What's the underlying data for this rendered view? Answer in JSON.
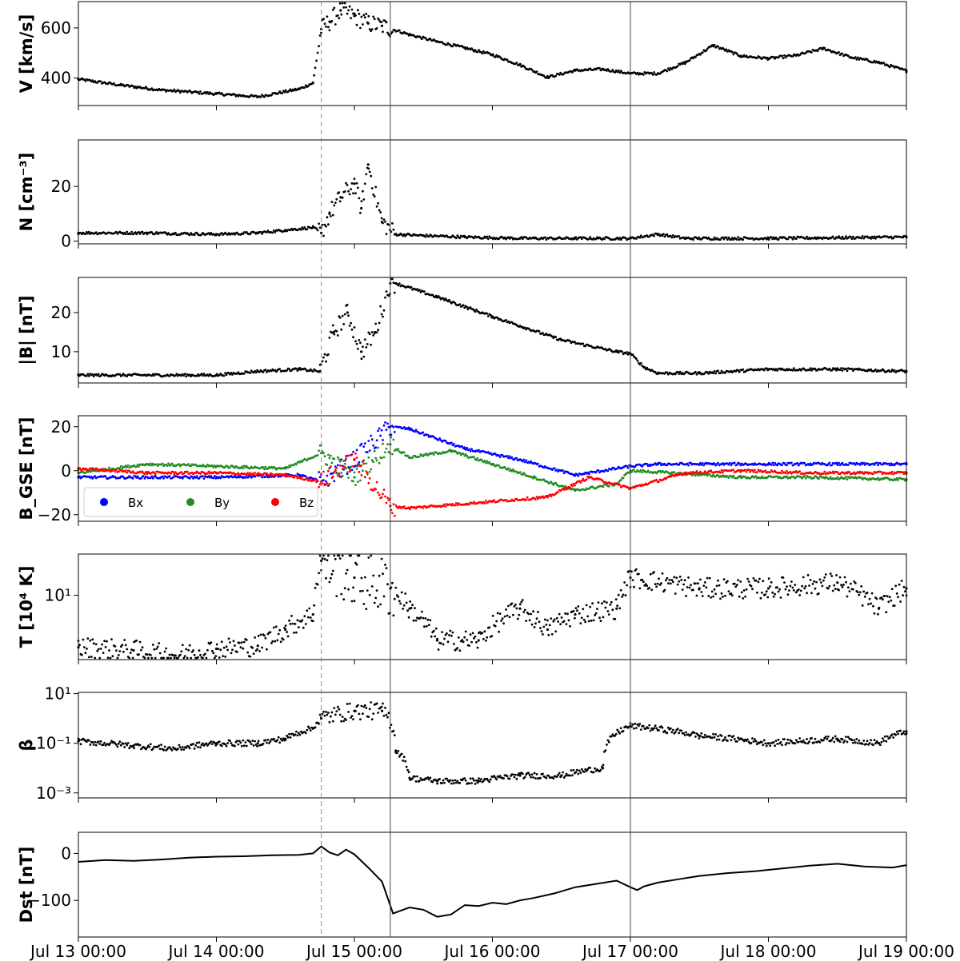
{
  "chart_data": [
    {
      "type": "scatter",
      "panel": "speed",
      "ylabel": "V [km/s]",
      "ylim": [
        290,
        705
      ],
      "yticks": [
        400,
        600
      ],
      "ytick_labels": [
        "400",
        "600"
      ],
      "series": [
        {
          "color": "#000000",
          "x": [
            0,
            0.3,
            0.6,
            1.0,
            1.3,
            1.6,
            1.7,
            1.76,
            1.82,
            1.9,
            2.0,
            2.1,
            2.2,
            2.4,
            2.6,
            2.8,
            3.0,
            3.2,
            3.4,
            3.6,
            3.8,
            4.0,
            4.2,
            4.4,
            4.6,
            4.8,
            5.0,
            5.2,
            5.4,
            5.6,
            5.8,
            6.0
          ],
          "y": [
            395,
            372,
            352,
            337,
            325,
            356,
            380,
            595,
            625,
            670,
            648,
            618,
            608,
            573,
            545,
            520,
            493,
            452,
            403,
            430,
            435,
            418,
            418,
            462,
            530,
            488,
            478,
            490,
            518,
            482,
            462,
            428
          ]
        }
      ]
    },
    {
      "type": "scatter",
      "panel": "density",
      "ylabel": "N [cm⁻³]",
      "ylim": [
        -1,
        37
      ],
      "yticks": [
        0,
        20
      ],
      "ytick_labels": [
        "0",
        "20"
      ],
      "series": [
        {
          "color": "#000000",
          "x": [
            0,
            0.5,
            1.0,
            1.3,
            1.5,
            1.7,
            1.76,
            1.82,
            1.9,
            2.0,
            2.05,
            2.1,
            2.2,
            2.3,
            2.5,
            2.8,
            3.2,
            3.6,
            4.0,
            4.2,
            4.4,
            5.0,
            6.0
          ],
          "y": [
            3,
            3,
            2.5,
            3,
            4,
            5,
            3,
            10,
            16,
            21,
            12,
            28,
            7,
            2.5,
            2,
            1.5,
            1,
            1,
            1,
            2.5,
            1,
            1,
            1.5
          ]
        }
      ]
    },
    {
      "type": "scatter",
      "panel": "field-magnitude",
      "ylabel": "|B| [nT]",
      "ylim": [
        2,
        29
      ],
      "yticks": [
        10,
        20
      ],
      "ytick_labels": [
        "10",
        "20"
      ],
      "series": [
        {
          "color": "#000000",
          "x": [
            0,
            0.5,
            1.0,
            1.3,
            1.6,
            1.75,
            1.85,
            1.95,
            2.05,
            2.15,
            2.26,
            2.3,
            2.6,
            3.0,
            3.5,
            3.9,
            4.0,
            4.1,
            4.2,
            4.5,
            5.0,
            5.5,
            6.0
          ],
          "y": [
            4,
            4,
            4,
            5,
            5.5,
            5,
            15,
            20,
            10,
            15,
            27.5,
            27.5,
            24,
            19,
            13,
            10,
            9.5,
            6,
            4.5,
            4.5,
            5.5,
            5.5,
            5
          ]
        }
      ]
    },
    {
      "type": "scatter",
      "panel": "field-components",
      "ylabel": "B_GSE [nT]",
      "ylim": [
        -23,
        25
      ],
      "yticks": [
        -20,
        0,
        20
      ],
      "ytick_labels": [
        "−20",
        "0",
        "20"
      ],
      "legend": {
        "position": "lower-left",
        "entries": [
          "Bx",
          "By",
          "Bz"
        ]
      },
      "series": [
        {
          "name": "Bx",
          "color": "#0000ff",
          "x": [
            0,
            1.0,
            1.6,
            1.76,
            2.0,
            2.26,
            2.4,
            2.8,
            3.2,
            3.6,
            4.0,
            4.2,
            4.6,
            5.0,
            5.5,
            6.0
          ],
          "y": [
            -3,
            -3,
            -2,
            -5,
            5,
            20,
            19,
            10,
            5,
            -2,
            2,
            3,
            3,
            3,
            3,
            3
          ]
        },
        {
          "name": "By",
          "color": "#228b22",
          "x": [
            0,
            0.5,
            1.0,
            1.5,
            1.76,
            2.0,
            2.26,
            2.4,
            2.7,
            3.0,
            3.3,
            3.6,
            3.9,
            4.0,
            4.3,
            4.8,
            5.3,
            6.0
          ],
          "y": [
            -1,
            3,
            2,
            1,
            8,
            -3,
            12,
            6,
            9,
            3,
            -3,
            -9,
            -6,
            0,
            -1,
            -3,
            -3,
            -4
          ]
        },
        {
          "name": "Bz",
          "color": "#ff0000",
          "x": [
            0,
            0.5,
            1.0,
            1.5,
            1.76,
            2.0,
            2.26,
            2.4,
            3.0,
            3.4,
            3.7,
            4.0,
            4.4,
            4.8,
            5.3,
            6.0
          ],
          "y": [
            1,
            -1,
            -1,
            -2,
            -5,
            5,
            -16,
            -17,
            -14,
            -12,
            -3,
            -8,
            -1,
            0,
            -1,
            -1
          ]
        }
      ]
    },
    {
      "type": "scatter",
      "panel": "temperature",
      "ylabel": "T [10⁴ K]",
      "yscale": "log",
      "yticks": [
        10
      ],
      "ytick_labels": [
        "10¹"
      ],
      "series": [
        {
          "color": "#000000",
          "x": [
            0,
            0.4,
            0.7,
            1.0,
            1.3,
            1.5,
            1.7,
            1.76,
            2.0,
            2.26,
            2.4,
            2.6,
            2.9,
            3.2,
            3.4,
            3.6,
            3.9,
            4.0,
            4.5,
            5.0,
            5.5,
            5.8,
            6.0
          ],
          "y": [
            2.5,
            2.3,
            2.0,
            2.4,
            2.6,
            4.0,
            6.0,
            25,
            16,
            12,
            7,
            3,
            3,
            7,
            4,
            6,
            7,
            16,
            12,
            12,
            14,
            7,
            12
          ]
        }
      ]
    },
    {
      "type": "scatter",
      "panel": "plasma-beta",
      "ylabel": "β",
      "yscale": "log",
      "yticks": [
        10,
        0.1,
        0.001
      ],
      "ytick_labels": [
        "10¹",
        "10⁻¹",
        "10⁻³"
      ],
      "series": [
        {
          "color": "#000000",
          "x": [
            0,
            0.4,
            0.7,
            1.0,
            1.3,
            1.5,
            1.7,
            1.76,
            2.0,
            2.2,
            2.3,
            2.4,
            2.6,
            2.9,
            3.2,
            3.5,
            3.8,
            4.0,
            4.5,
            5.0,
            5.5,
            5.8,
            6.0
          ],
          "y": [
            0.12,
            0.08,
            0.06,
            0.1,
            0.1,
            0.15,
            0.4,
            1.0,
            2.0,
            2.0,
            0.05,
            0.004,
            0.003,
            0.003,
            0.005,
            0.005,
            0.01,
            0.5,
            0.2,
            0.1,
            0.15,
            0.1,
            0.3
          ]
        }
      ]
    },
    {
      "type": "line",
      "panel": "dst",
      "ylabel": "Dst [nT]",
      "ylim": [
        -178,
        45
      ],
      "yticks": [
        -100,
        0
      ],
      "ytick_labels": [
        "−100",
        "0"
      ],
      "xticks": [
        0,
        1,
        2,
        3,
        4,
        5,
        6
      ],
      "xtick_labels": [
        "Jul 13 00:00",
        "Jul 14 00:00",
        "Jul 15 00:00",
        "Jul 16 00:00",
        "Jul 17 00:00",
        "Jul 18 00:00",
        "Jul 19 00:00"
      ],
      "series": [
        {
          "color": "#000000",
          "x": [
            0,
            0.2,
            0.4,
            0.6,
            0.8,
            1.0,
            1.2,
            1.4,
            1.6,
            1.7,
            1.76,
            1.82,
            1.88,
            1.94,
            2.0,
            2.1,
            2.2,
            2.28,
            2.4,
            2.5,
            2.6,
            2.7,
            2.8,
            2.9,
            3.0,
            3.1,
            3.2,
            3.3,
            3.45,
            3.6,
            3.75,
            3.9,
            4.0,
            4.05,
            4.1,
            4.2,
            4.35,
            4.5,
            4.7,
            4.9,
            5.1,
            5.3,
            5.5,
            5.7,
            5.9,
            6.0
          ],
          "y": [
            -18,
            -14,
            -16,
            -13,
            -9,
            -7,
            -6,
            -4,
            -3,
            0,
            15,
            2,
            -4,
            8,
            -2,
            -30,
            -60,
            -128,
            -115,
            -120,
            -135,
            -130,
            -110,
            -112,
            -105,
            -108,
            -100,
            -95,
            -85,
            -72,
            -65,
            -58,
            -72,
            -78,
            -70,
            -62,
            -55,
            -48,
            -42,
            -38,
            -32,
            -26,
            -22,
            -28,
            -30,
            -25
          ]
        }
      ]
    }
  ],
  "event_markers": [
    {
      "x": 1.76,
      "style": "dashed"
    },
    {
      "x": 2.26,
      "style": "solid"
    },
    {
      "x": 4.0,
      "style": "solid"
    }
  ],
  "legend_labels": {
    "bx": "Bx",
    "by": "By",
    "bz": "Bz"
  }
}
